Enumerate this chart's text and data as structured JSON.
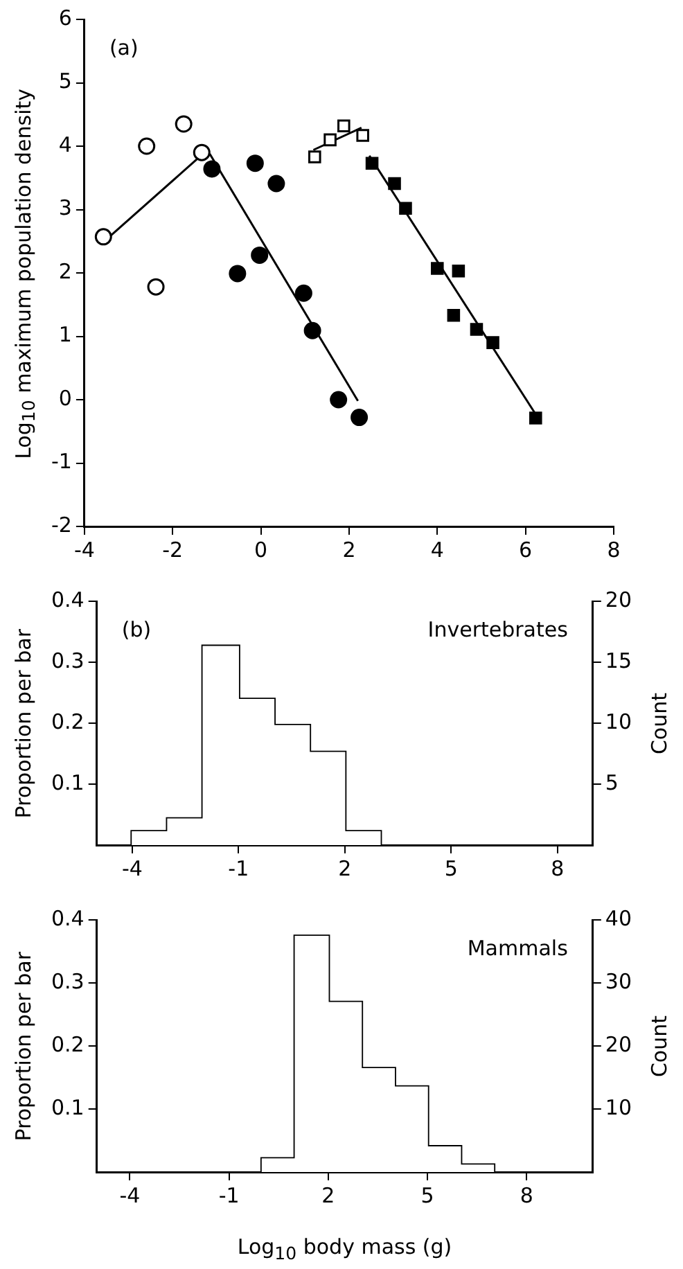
{
  "chart_data": [
    {
      "type": "scatter",
      "title": "(a)",
      "ylabel": "Log$_{10}$ maximum population density",
      "xlim": [
        -4,
        8
      ],
      "xticks": [
        -4,
        -2,
        0,
        2,
        4,
        6,
        8
      ],
      "ylim": [
        -2,
        6
      ],
      "yticks": [
        -2,
        -1,
        0,
        1,
        2,
        3,
        4,
        5,
        6
      ],
      "grid": false,
      "legend": false,
      "series": [
        {
          "type": "scatter",
          "marker": "circle",
          "color": "#ffffff",
          "x": [
            -3.57,
            -2.59,
            -2.38,
            -1.75,
            -1.34
          ],
          "values": [
            2.57,
            4.0,
            1.78,
            4.35,
            3.9
          ]
        },
        {
          "type": "scatter",
          "marker": "circle",
          "color": "#000000",
          "x": [
            -1.11,
            -0.13,
            0.35,
            -0.53,
            -0.03,
            0.97,
            1.17,
            1.76,
            2.23
          ],
          "values": [
            3.64,
            3.73,
            3.41,
            1.99,
            2.28,
            1.68,
            1.09,
            0.0,
            -0.28
          ]
        },
        {
          "type": "scatter",
          "marker": "square",
          "color": "#ffffff",
          "x": [
            1.22,
            1.57,
            1.88,
            2.31
          ],
          "values": [
            3.83,
            4.1,
            4.32,
            4.17
          ]
        },
        {
          "type": "scatter",
          "marker": "square",
          "color": "#000000",
          "x": [
            2.52,
            3.03,
            3.28,
            4.0,
            4.48,
            4.37,
            4.89,
            5.26,
            6.23
          ],
          "values": [
            3.73,
            3.41,
            3.02,
            2.07,
            2.03,
            1.33,
            1.11,
            0.9,
            -0.29
          ]
        },
        {
          "type": "line",
          "marker": "none",
          "color": "#000000",
          "x": [
            -3.63,
            -1.23
          ],
          "values": [
            2.45,
            3.93
          ]
        },
        {
          "type": "line",
          "marker": "none",
          "color": "#000000",
          "x": [
            -1.16,
            2.2
          ],
          "values": [
            3.88,
            -0.02
          ]
        },
        {
          "type": "line",
          "marker": "none",
          "color": "#000000",
          "x": [
            1.19,
            2.28
          ],
          "values": [
            3.94,
            4.29
          ]
        },
        {
          "type": "line",
          "marker": "none",
          "color": "#000000",
          "x": [
            2.46,
            6.23
          ],
          "values": [
            3.85,
            -0.23
          ]
        }
      ]
    },
    {
      "type": "histogram",
      "title": "(b)",
      "annotations": [
        "Invertebrates"
      ],
      "ylabel": "Proportion per bar",
      "y2label": "Count",
      "color": "#ffffff",
      "grid": false,
      "legend": false,
      "bins": [
        -4,
        -3,
        -2,
        -1,
        0,
        1,
        2,
        3
      ],
      "values": [
        0.022,
        0.043,
        0.326,
        0.239,
        0.196,
        0.152,
        0.022
      ],
      "xlim": [
        -5,
        9
      ],
      "xticks": [
        -4,
        -1,
        2,
        5,
        8
      ],
      "ylim": [
        0,
        0.4
      ],
      "yticks": [
        0.1,
        0.2,
        0.3,
        0.4
      ],
      "y2lim": [
        0,
        20
      ],
      "y2ticks": [
        5,
        10,
        15,
        20
      ]
    },
    {
      "type": "histogram",
      "annotations": [
        "Mammals"
      ],
      "xlabel": "Log$_{10}$ body mass (g)",
      "ylabel": "Proportion per bar",
      "y2label": "Count",
      "color": "#ffffff",
      "grid": false,
      "legend": false,
      "bins": [
        0,
        1,
        2,
        3,
        4,
        5,
        6,
        7
      ],
      "values": [
        0.021,
        0.374,
        0.269,
        0.164,
        0.135,
        0.04,
        0.011
      ],
      "xlim": [
        -5,
        10
      ],
      "xticks": [
        -4,
        -1,
        2,
        5,
        8
      ],
      "ylim": [
        0,
        0.4
      ],
      "yticks": [
        0.1,
        0.2,
        0.3,
        0.4
      ],
      "y2lim": [
        0,
        40
      ],
      "y2ticks": [
        10,
        20,
        30,
        40
      ]
    }
  ]
}
